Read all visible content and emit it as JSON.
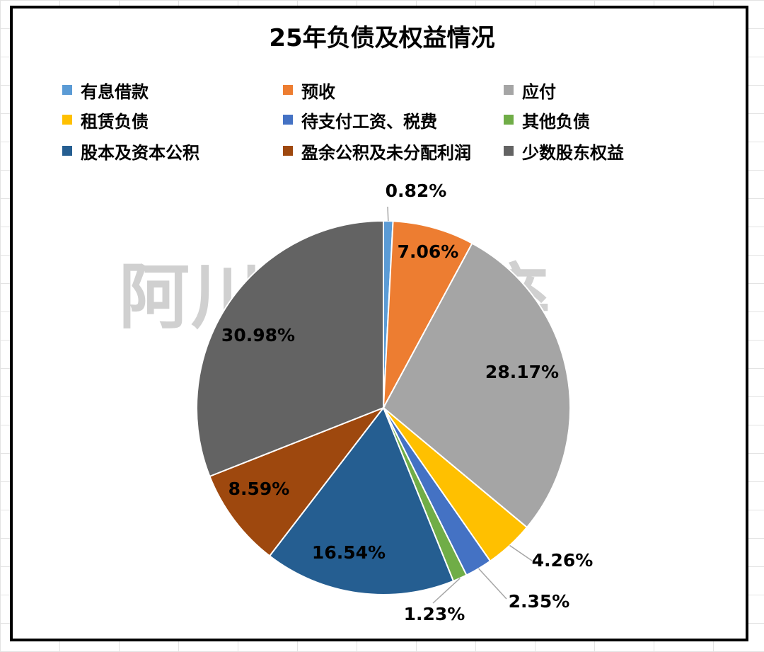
{
  "chart_data": {
    "type": "pie",
    "title": "25年负债及权益情况",
    "legend_placement": "top",
    "watermark": "阿川日拱一卒",
    "slices": [
      {
        "name": "有息借款",
        "value": 0.82,
        "label": "0.82%",
        "color": "#5B9BD5"
      },
      {
        "name": "预收",
        "value": 7.06,
        "label": "7.06%",
        "color": "#ED7D31"
      },
      {
        "name": "应付",
        "value": 28.17,
        "label": "28.17%",
        "color": "#A5A5A5"
      },
      {
        "name": "租赁负债",
        "value": 4.26,
        "label": "4.26%",
        "color": "#FFC000"
      },
      {
        "name": "待支付工资、税费",
        "value": 2.35,
        "label": "2.35%",
        "color": "#4472C4"
      },
      {
        "name": "其他负债",
        "value": 1.23,
        "label": "1.23%",
        "color": "#70AD47"
      },
      {
        "name": "股本及资本公积",
        "value": 16.54,
        "label": "16.54%",
        "color": "#255E91"
      },
      {
        "name": "盈余公积及未分配利润",
        "value": 8.59,
        "label": "8.59%",
        "color": "#9E480E"
      },
      {
        "name": "少数股东权益",
        "value": 30.98,
        "label": "30.98%",
        "color": "#636363"
      }
    ]
  }
}
